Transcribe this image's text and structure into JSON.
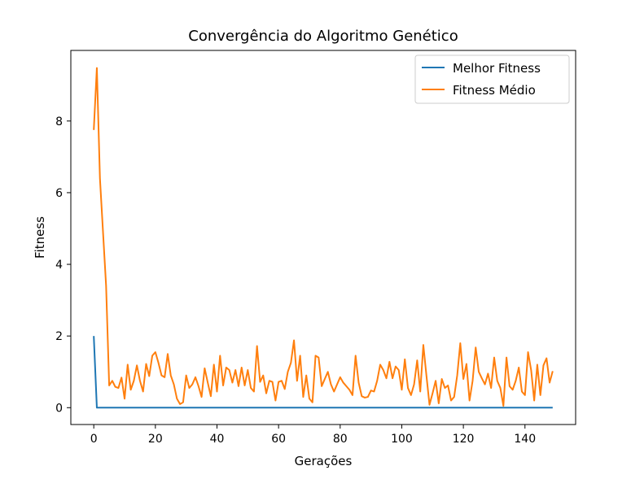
{
  "chart_data": {
    "type": "line",
    "title": "Convergência do Algoritmo Genético",
    "xlabel": "Gerações",
    "ylabel": "Fitness",
    "xlim": [
      -7.45,
      156.45
    ],
    "ylim": [
      -0.47,
      9.97
    ],
    "xticks": [
      0,
      20,
      40,
      60,
      80,
      100,
      120,
      140
    ],
    "yticks": [
      0,
      2,
      4,
      6,
      8
    ],
    "grid": false,
    "legend_position": "top-right",
    "series": [
      {
        "name": "Melhor Fitness",
        "color": "#1f77b4",
        "x_start": 0,
        "values": [
          2.0,
          0,
          0,
          0,
          0,
          0,
          0,
          0,
          0,
          0,
          0,
          0,
          0,
          0,
          0,
          0,
          0,
          0,
          0,
          0,
          0,
          0,
          0,
          0,
          0,
          0,
          0,
          0,
          0,
          0,
          0,
          0,
          0,
          0,
          0,
          0,
          0,
          0,
          0,
          0,
          0,
          0,
          0,
          0,
          0,
          0,
          0,
          0,
          0,
          0,
          0,
          0,
          0,
          0,
          0,
          0,
          0,
          0,
          0,
          0,
          0,
          0,
          0,
          0,
          0,
          0,
          0,
          0,
          0,
          0,
          0,
          0,
          0,
          0,
          0,
          0,
          0,
          0,
          0,
          0,
          0,
          0,
          0,
          0,
          0,
          0,
          0,
          0,
          0,
          0,
          0,
          0,
          0,
          0,
          0,
          0,
          0,
          0,
          0,
          0,
          0,
          0,
          0,
          0,
          0,
          0,
          0,
          0,
          0,
          0,
          0,
          0,
          0,
          0,
          0,
          0,
          0,
          0,
          0,
          0,
          0,
          0,
          0,
          0,
          0,
          0,
          0,
          0,
          0,
          0,
          0,
          0,
          0,
          0,
          0,
          0,
          0,
          0,
          0,
          0,
          0,
          0,
          0,
          0,
          0,
          0,
          0,
          0,
          0,
          0
        ]
      },
      {
        "name": "Fitness Médio",
        "color": "#ff7f0e",
        "x_start": 0,
        "values": [
          7.75,
          9.48,
          6.4,
          4.9,
          3.4,
          0.62,
          0.75,
          0.58,
          0.55,
          0.84,
          0.25,
          1.2,
          0.5,
          0.75,
          1.18,
          0.75,
          0.45,
          1.22,
          0.88,
          1.45,
          1.55,
          1.25,
          0.9,
          0.85,
          1.5,
          0.9,
          0.65,
          0.25,
          0.1,
          0.15,
          0.9,
          0.55,
          0.65,
          0.85,
          0.6,
          0.3,
          1.1,
          0.7,
          0.32,
          1.2,
          0.45,
          1.45,
          0.62,
          1.12,
          1.05,
          0.7,
          1.05,
          0.6,
          1.12,
          0.62,
          1.05,
          0.55,
          0.45,
          1.72,
          0.72,
          0.9,
          0.4,
          0.75,
          0.72,
          0.2,
          0.72,
          0.75,
          0.52,
          1.0,
          1.25,
          1.88,
          0.75,
          1.45,
          0.3,
          0.9,
          0.25,
          0.15,
          1.45,
          1.4,
          0.6,
          0.8,
          1.0,
          0.65,
          0.45,
          0.65,
          0.85,
          0.7,
          0.6,
          0.5,
          0.35,
          1.45,
          0.7,
          0.32,
          0.28,
          0.3,
          0.48,
          0.45,
          0.75,
          1.2,
          1.05,
          0.82,
          1.28,
          0.82,
          1.15,
          1.05,
          0.5,
          1.35,
          0.55,
          0.35,
          0.65,
          1.32,
          0.45,
          1.75,
          0.9,
          0.08,
          0.4,
          0.75,
          0.12,
          0.8,
          0.55,
          0.62,
          0.2,
          0.3,
          0.9,
          1.8,
          0.8,
          1.22,
          0.2,
          0.75,
          1.68,
          1.0,
          0.82,
          0.65,
          0.95,
          0.55,
          1.4,
          0.75,
          0.55,
          0.05,
          1.4,
          0.6,
          0.5,
          0.75,
          1.12,
          0.45,
          0.35,
          1.55,
          1.05,
          0.2,
          1.2,
          0.35,
          1.18,
          1.38,
          0.7,
          1.02
        ]
      }
    ]
  }
}
